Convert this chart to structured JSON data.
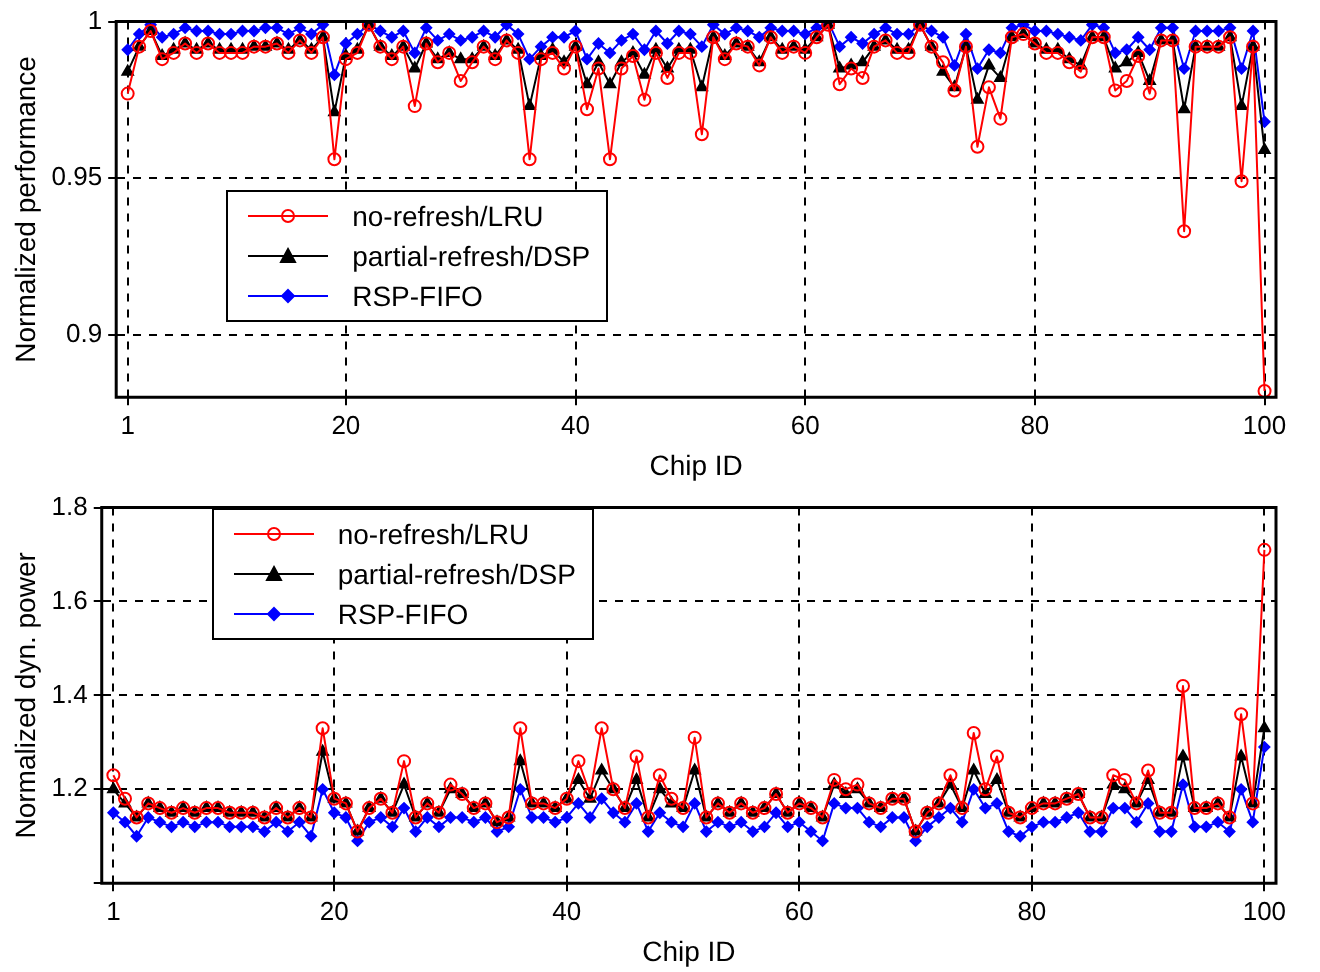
{
  "chart_data": [
    {
      "type": "line",
      "xlabel": "Chip ID",
      "ylabel": "Normalized performance",
      "legend": "center left",
      "grid": true,
      "line_style": "solid",
      "xlim": [
        0,
        101
      ],
      "xticks": [
        1,
        20,
        40,
        60,
        80,
        100
      ],
      "ylim": [
        0.88,
        1
      ],
      "yticks": [
        0.9,
        0.95,
        1
      ],
      "x": [
        1,
        2,
        3,
        4,
        5,
        6,
        7,
        8,
        9,
        10,
        11,
        12,
        13,
        14,
        15,
        16,
        17,
        18,
        19,
        20,
        21,
        22,
        23,
        24,
        25,
        26,
        27,
        28,
        29,
        30,
        31,
        32,
        33,
        34,
        35,
        36,
        37,
        38,
        39,
        40,
        41,
        42,
        43,
        44,
        45,
        46,
        47,
        48,
        49,
        50,
        51,
        52,
        53,
        54,
        55,
        56,
        57,
        58,
        59,
        60,
        61,
        62,
        63,
        64,
        65,
        66,
        67,
        68,
        69,
        70,
        71,
        72,
        73,
        74,
        75,
        76,
        77,
        78,
        79,
        80,
        81,
        82,
        83,
        84,
        85,
        86,
        87,
        88,
        89,
        90,
        91,
        92,
        93,
        94,
        95,
        96,
        97,
        98,
        99,
        100
      ],
      "series": [
        {
          "name": "no-refresh/LRU",
          "color": "#ff0000",
          "marker": "circle",
          "values": [
            0.977,
            0.992,
            0.997,
            0.988,
            0.99,
            0.993,
            0.99,
            0.993,
            0.99,
            0.99,
            0.99,
            0.992,
            0.992,
            0.993,
            0.99,
            0.994,
            0.99,
            0.995,
            0.956,
            0.988,
            0.99,
            0.999,
            0.992,
            0.988,
            0.992,
            0.973,
            0.993,
            0.987,
            0.99,
            0.981,
            0.987,
            0.992,
            0.988,
            0.994,
            0.99,
            0.956,
            0.988,
            0.99,
            0.985,
            0.992,
            0.972,
            0.985,
            0.956,
            0.985,
            0.989,
            0.975,
            0.99,
            0.982,
            0.99,
            0.99,
            0.964,
            0.995,
            0.988,
            0.993,
            0.992,
            0.986,
            0.995,
            0.99,
            0.992,
            0.99,
            0.995,
            0.999,
            0.98,
            0.985,
            0.982,
            0.992,
            0.994,
            0.99,
            0.99,
            0.999,
            0.992,
            0.987,
            0.978,
            0.992,
            0.96,
            0.979,
            0.969,
            0.995,
            0.996,
            0.993,
            0.99,
            0.99,
            0.987,
            0.984,
            0.995,
            0.995,
            0.978,
            0.981,
            0.989,
            0.977,
            0.994,
            0.994,
            0.933,
            0.992,
            0.992,
            0.992,
            0.995,
            0.949,
            0.992,
            0.882
          ]
        },
        {
          "name": "partial-refresh/DSP",
          "color": "#000000",
          "marker": "triangle",
          "values": [
            0.984,
            0.992,
            0.997,
            0.989,
            0.991,
            0.993,
            0.991,
            0.993,
            0.991,
            0.991,
            0.991,
            0.992,
            0.992,
            0.993,
            0.991,
            0.994,
            0.991,
            0.995,
            0.971,
            0.989,
            0.991,
            0.999,
            0.992,
            0.989,
            0.992,
            0.985,
            0.993,
            0.988,
            0.99,
            0.988,
            0.988,
            0.992,
            0.989,
            0.994,
            0.991,
            0.973,
            0.989,
            0.991,
            0.987,
            0.992,
            0.98,
            0.987,
            0.98,
            0.987,
            0.99,
            0.983,
            0.991,
            0.985,
            0.991,
            0.991,
            0.979,
            0.995,
            0.989,
            0.993,
            0.992,
            0.987,
            0.995,
            0.991,
            0.992,
            0.991,
            0.995,
            0.999,
            0.985,
            0.986,
            0.987,
            0.992,
            0.994,
            0.991,
            0.991,
            0.999,
            0.992,
            0.984,
            0.979,
            0.992,
            0.975,
            0.986,
            0.982,
            0.995,
            0.996,
            0.993,
            0.991,
            0.991,
            0.988,
            0.986,
            0.995,
            0.995,
            0.985,
            0.987,
            0.99,
            0.981,
            0.994,
            0.994,
            0.972,
            0.992,
            0.992,
            0.992,
            0.995,
            0.973,
            0.992,
            0.959
          ]
        },
        {
          "name": "RSP-FIFO",
          "color": "#0000ff",
          "marker": "diamond",
          "values": [
            0.991,
            0.996,
            0.999,
            0.995,
            0.996,
            0.998,
            0.997,
            0.997,
            0.996,
            0.996,
            0.997,
            0.997,
            0.998,
            0.998,
            0.996,
            0.998,
            0.996,
            0.999,
            0.983,
            0.993,
            0.996,
            0.999,
            0.997,
            0.995,
            0.997,
            0.99,
            0.998,
            0.994,
            0.996,
            0.994,
            0.995,
            0.997,
            0.995,
            0.999,
            0.996,
            0.988,
            0.992,
            0.995,
            0.995,
            0.997,
            0.988,
            0.993,
            0.99,
            0.994,
            0.996,
            0.991,
            0.997,
            0.993,
            0.997,
            0.996,
            0.992,
            0.999,
            0.996,
            0.998,
            0.997,
            0.995,
            0.998,
            0.997,
            0.997,
            0.996,
            0.998,
            1.0,
            0.992,
            0.995,
            0.993,
            0.996,
            0.998,
            0.996,
            0.996,
            0.999,
            0.997,
            0.995,
            0.986,
            0.996,
            0.985,
            0.991,
            0.99,
            0.998,
            0.999,
            0.997,
            0.997,
            0.996,
            0.995,
            0.994,
            0.999,
            0.998,
            0.99,
            0.991,
            0.995,
            0.991,
            0.998,
            0.998,
            0.985,
            0.997,
            0.997,
            0.997,
            0.998,
            0.985,
            0.997,
            0.968
          ]
        }
      ]
    },
    {
      "type": "line",
      "xlabel": "Chip ID",
      "ylabel": "Normalized dyn. power",
      "legend": "top left",
      "grid": true,
      "line_style": "solid",
      "xlim": [
        0,
        101
      ],
      "xticks": [
        1,
        20,
        40,
        60,
        80,
        100
      ],
      "ylim": [
        1,
        1.8
      ],
      "yticks": [
        {
          "value": 1,
          "label": null
        },
        1.2,
        1.4,
        1.6,
        1.8
      ],
      "x": [
        1,
        2,
        3,
        4,
        5,
        6,
        7,
        8,
        9,
        10,
        11,
        12,
        13,
        14,
        15,
        16,
        17,
        18,
        19,
        20,
        21,
        22,
        23,
        24,
        25,
        26,
        27,
        28,
        29,
        30,
        31,
        32,
        33,
        34,
        35,
        36,
        37,
        38,
        39,
        40,
        41,
        42,
        43,
        44,
        45,
        46,
        47,
        48,
        49,
        50,
        51,
        52,
        53,
        54,
        55,
        56,
        57,
        58,
        59,
        60,
        61,
        62,
        63,
        64,
        65,
        66,
        67,
        68,
        69,
        70,
        71,
        72,
        73,
        74,
        75,
        76,
        77,
        78,
        79,
        80,
        81,
        82,
        83,
        84,
        85,
        86,
        87,
        88,
        89,
        90,
        91,
        92,
        93,
        94,
        95,
        96,
        97,
        98,
        99,
        100
      ],
      "series": [
        {
          "name": "no-refresh/LRU",
          "color": "#ff0000",
          "marker": "circle",
          "values": [
            1.23,
            1.18,
            1.14,
            1.17,
            1.16,
            1.15,
            1.16,
            1.15,
            1.16,
            1.16,
            1.15,
            1.15,
            1.15,
            1.14,
            1.16,
            1.14,
            1.16,
            1.14,
            1.33,
            1.18,
            1.17,
            1.11,
            1.16,
            1.18,
            1.15,
            1.26,
            1.14,
            1.17,
            1.15,
            1.21,
            1.19,
            1.16,
            1.17,
            1.13,
            1.14,
            1.33,
            1.17,
            1.17,
            1.16,
            1.18,
            1.26,
            1.19,
            1.33,
            1.2,
            1.16,
            1.27,
            1.14,
            1.23,
            1.18,
            1.16,
            1.31,
            1.14,
            1.17,
            1.15,
            1.17,
            1.15,
            1.16,
            1.19,
            1.15,
            1.17,
            1.16,
            1.14,
            1.22,
            1.2,
            1.21,
            1.17,
            1.16,
            1.18,
            1.18,
            1.11,
            1.15,
            1.17,
            1.23,
            1.16,
            1.32,
            1.2,
            1.27,
            1.15,
            1.14,
            1.16,
            1.17,
            1.17,
            1.18,
            1.19,
            1.14,
            1.14,
            1.23,
            1.22,
            1.17,
            1.24,
            1.15,
            1.15,
            1.42,
            1.16,
            1.16,
            1.17,
            1.14,
            1.36,
            1.17,
            1.71
          ]
        },
        {
          "name": "partial-refresh/DSP",
          "color": "#000000",
          "marker": "triangle",
          "values": [
            1.2,
            1.17,
            1.14,
            1.17,
            1.16,
            1.15,
            1.16,
            1.15,
            1.16,
            1.16,
            1.15,
            1.15,
            1.15,
            1.14,
            1.16,
            1.14,
            1.16,
            1.14,
            1.28,
            1.18,
            1.17,
            1.11,
            1.16,
            1.18,
            1.15,
            1.21,
            1.14,
            1.17,
            1.15,
            1.2,
            1.19,
            1.16,
            1.17,
            1.13,
            1.14,
            1.26,
            1.17,
            1.17,
            1.16,
            1.18,
            1.22,
            1.18,
            1.24,
            1.2,
            1.16,
            1.22,
            1.14,
            1.2,
            1.17,
            1.16,
            1.24,
            1.14,
            1.17,
            1.15,
            1.17,
            1.15,
            1.16,
            1.19,
            1.15,
            1.17,
            1.16,
            1.14,
            1.21,
            1.19,
            1.2,
            1.17,
            1.16,
            1.18,
            1.18,
            1.11,
            1.15,
            1.17,
            1.21,
            1.16,
            1.24,
            1.19,
            1.22,
            1.15,
            1.14,
            1.16,
            1.17,
            1.17,
            1.18,
            1.19,
            1.14,
            1.14,
            1.21,
            1.2,
            1.17,
            1.22,
            1.15,
            1.15,
            1.27,
            1.16,
            1.16,
            1.17,
            1.14,
            1.27,
            1.17,
            1.33
          ]
        },
        {
          "name": "RSP-FIFO",
          "color": "#0000ff",
          "marker": "diamond",
          "values": [
            1.15,
            1.13,
            1.1,
            1.14,
            1.13,
            1.12,
            1.13,
            1.12,
            1.13,
            1.13,
            1.12,
            1.12,
            1.12,
            1.11,
            1.13,
            1.11,
            1.13,
            1.1,
            1.2,
            1.15,
            1.14,
            1.09,
            1.13,
            1.14,
            1.12,
            1.16,
            1.11,
            1.14,
            1.12,
            1.14,
            1.14,
            1.13,
            1.14,
            1.11,
            1.12,
            1.2,
            1.14,
            1.14,
            1.13,
            1.14,
            1.17,
            1.14,
            1.18,
            1.15,
            1.13,
            1.17,
            1.11,
            1.15,
            1.13,
            1.12,
            1.17,
            1.11,
            1.13,
            1.12,
            1.13,
            1.11,
            1.12,
            1.15,
            1.12,
            1.13,
            1.11,
            1.09,
            1.17,
            1.16,
            1.16,
            1.13,
            1.12,
            1.14,
            1.14,
            1.09,
            1.12,
            1.14,
            1.16,
            1.13,
            1.2,
            1.16,
            1.17,
            1.11,
            1.1,
            1.12,
            1.13,
            1.13,
            1.14,
            1.15,
            1.11,
            1.11,
            1.16,
            1.16,
            1.13,
            1.17,
            1.11,
            1.11,
            1.21,
            1.12,
            1.12,
            1.13,
            1.11,
            1.2,
            1.13,
            1.29
          ]
        }
      ]
    }
  ]
}
